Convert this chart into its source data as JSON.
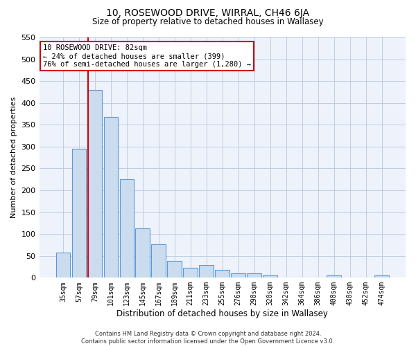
{
  "title": "10, ROSEWOOD DRIVE, WIRRAL, CH46 6JA",
  "subtitle": "Size of property relative to detached houses in Wallasey",
  "xlabel": "Distribution of detached houses by size in Wallasey",
  "ylabel": "Number of detached properties",
  "bar_labels": [
    "35sqm",
    "57sqm",
    "79sqm",
    "101sqm",
    "123sqm",
    "145sqm",
    "167sqm",
    "189sqm",
    "211sqm",
    "233sqm",
    "255sqm",
    "276sqm",
    "298sqm",
    "320sqm",
    "342sqm",
    "364sqm",
    "386sqm",
    "408sqm",
    "430sqm",
    "452sqm",
    "474sqm"
  ],
  "bar_values": [
    57,
    295,
    430,
    368,
    225,
    113,
    76,
    38,
    22,
    29,
    18,
    10,
    10,
    5,
    0,
    0,
    0,
    5,
    0,
    0,
    5
  ],
  "bar_color": "#ccdcef",
  "bar_edge_color": "#5b9bd5",
  "ylim": [
    0,
    550
  ],
  "yticks": [
    0,
    50,
    100,
    150,
    200,
    250,
    300,
    350,
    400,
    450,
    500,
    550
  ],
  "vline_color": "#cc0000",
  "annotation_title": "10 ROSEWOOD DRIVE: 82sqm",
  "annotation_line1": "← 24% of detached houses are smaller (399)",
  "annotation_line2": "76% of semi-detached houses are larger (1,280) →",
  "annotation_box_edgecolor": "#cc0000",
  "footer_line1": "Contains HM Land Registry data © Crown copyright and database right 2024.",
  "footer_line2": "Contains public sector information licensed under the Open Government Licence v3.0.",
  "bg_color": "#ffffff",
  "plot_bg_color": "#eef2fa"
}
